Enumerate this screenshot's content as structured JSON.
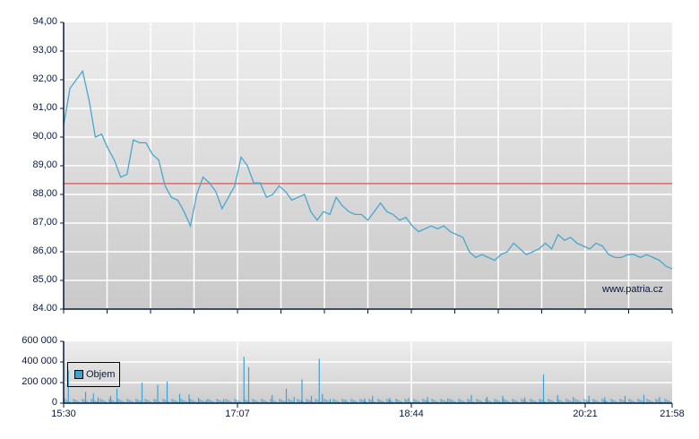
{
  "chart_data": [
    {
      "type": "line",
      "title": "",
      "xlabel": "",
      "ylabel": "",
      "ylim": [
        84.0,
        94.0
      ],
      "y_ticks": [
        "84.00",
        "85,00",
        "86,00",
        "87,00",
        "88,00",
        "89,00",
        "90,00",
        "91,00",
        "92,00",
        "93,00",
        "94,00"
      ],
      "x_ticks": [
        "15:30",
        "17:07",
        "18:44",
        "20:21",
        "21:58"
      ],
      "grid": true,
      "reference_line": {
        "value": 88.38,
        "color": "#d96a6a"
      },
      "watermark": "www.patria.cz",
      "series": [
        {
          "name": "Price",
          "color": "#4aa6cf",
          "x": [
            "15:30",
            "15:34",
            "15:38",
            "15:42",
            "15:46",
            "15:50",
            "15:54",
            "15:58",
            "16:02",
            "16:06",
            "16:10",
            "16:14",
            "16:18",
            "16:22",
            "16:26",
            "16:30",
            "16:34",
            "16:38",
            "16:42",
            "16:46",
            "16:50",
            "16:54",
            "16:58",
            "17:02",
            "17:07",
            "17:11",
            "17:15",
            "17:19",
            "17:23",
            "17:27",
            "17:31",
            "17:35",
            "17:39",
            "17:43",
            "17:47",
            "17:51",
            "17:55",
            "17:59",
            "18:03",
            "18:07",
            "18:11",
            "18:15",
            "18:19",
            "18:23",
            "18:27",
            "18:31",
            "18:35",
            "18:39",
            "18:44",
            "18:48",
            "18:52",
            "18:56",
            "19:00",
            "19:04",
            "19:08",
            "19:12",
            "19:16",
            "19:20",
            "19:24",
            "19:28",
            "19:32",
            "19:36",
            "19:40",
            "19:44",
            "19:48",
            "19:52",
            "19:56",
            "20:00",
            "20:04",
            "20:08",
            "20:12",
            "20:16",
            "20:21",
            "20:25",
            "20:29",
            "20:33",
            "20:37",
            "20:41",
            "20:45",
            "20:49",
            "20:53",
            "20:57",
            "21:01",
            "21:05",
            "21:09",
            "21:13",
            "21:17",
            "21:21",
            "21:25",
            "21:29",
            "21:33",
            "21:37",
            "21:41",
            "21:45",
            "21:49",
            "21:53",
            "21:58"
          ],
          "values": [
            90.4,
            91.7,
            92.0,
            92.3,
            91.3,
            90.0,
            90.1,
            89.6,
            89.2,
            88.6,
            88.7,
            89.9,
            89.8,
            89.8,
            89.4,
            89.2,
            88.3,
            87.9,
            87.8,
            87.4,
            86.9,
            88.0,
            88.6,
            88.4,
            88.1,
            87.5,
            87.9,
            88.3,
            89.3,
            89.0,
            88.4,
            88.4,
            87.9,
            88.0,
            88.3,
            88.1,
            87.8,
            87.9,
            88.0,
            87.4,
            87.1,
            87.4,
            87.3,
            87.9,
            87.6,
            87.4,
            87.3,
            87.3,
            87.1,
            87.4,
            87.7,
            87.4,
            87.3,
            87.1,
            87.2,
            86.9,
            86.7,
            86.8,
            86.9,
            86.8,
            86.9,
            86.7,
            86.6,
            86.5,
            86.0,
            85.8,
            85.9,
            85.8,
            85.7,
            85.9,
            86.0,
            86.3,
            86.1,
            85.9,
            86.0,
            86.1,
            86.3,
            86.1,
            86.6,
            86.4,
            86.5,
            86.3,
            86.2,
            86.1,
            86.3,
            86.2,
            85.9,
            85.8,
            85.8,
            85.9,
            85.9,
            85.8,
            85.9,
            85.8,
            85.7,
            85.5,
            85.4
          ]
        }
      ]
    },
    {
      "type": "bar",
      "title": "",
      "xlabel": "",
      "ylabel": "",
      "ylim": [
        0,
        600000
      ],
      "y_ticks": [
        "0",
        "200 000",
        "400 000",
        "600 000"
      ],
      "x_ticks": [
        "15:30",
        "17:07",
        "18:44",
        "20:21",
        "21:58"
      ],
      "grid": true,
      "legend": {
        "position": "upper-left",
        "entries": [
          "Objem"
        ]
      },
      "series": [
        {
          "name": "Objem",
          "color": "#3fa2d0",
          "x": [
            "15:33",
            "15:44",
            "15:49",
            "15:52",
            "16:00",
            "16:04",
            "16:20",
            "16:30",
            "16:36",
            "16:44",
            "16:50",
            "16:56",
            "17:01",
            "17:12",
            "17:25",
            "17:28",
            "17:43",
            "17:52",
            "17:57",
            "18:02",
            "18:08",
            "18:13",
            "18:15",
            "18:20",
            "18:30",
            "18:42",
            "18:47",
            "18:58",
            "19:02",
            "19:10",
            "19:22",
            "19:35",
            "19:50",
            "20:00",
            "20:10",
            "20:24",
            "20:36",
            "20:45",
            "20:55",
            "21:05",
            "21:15",
            "21:28",
            "21:40",
            "21:50"
          ],
          "values": [
            320000,
            110000,
            95000,
            55000,
            70000,
            140000,
            200000,
            180000,
            210000,
            90000,
            85000,
            50000,
            30000,
            40000,
            450000,
            350000,
            80000,
            140000,
            60000,
            230000,
            70000,
            430000,
            90000,
            40000,
            35000,
            45000,
            70000,
            50000,
            40000,
            50000,
            60000,
            45000,
            80000,
            60000,
            70000,
            55000,
            280000,
            80000,
            60000,
            70000,
            60000,
            70000,
            80000,
            60000
          ]
        }
      ]
    }
  ],
  "labels": {
    "price_y": [
      "94,00",
      "93,00",
      "92,00",
      "91,00",
      "90,00",
      "89,00",
      "88,00",
      "87,00",
      "86,00",
      "85,00",
      "84.00"
    ],
    "volume_y": [
      "600 000",
      "400 000",
      "200 000",
      "0"
    ],
    "x": [
      "15:30",
      "17:07",
      "18:44",
      "20:21",
      "21:58"
    ],
    "watermark": "www.patria.cz",
    "legend": "Objem"
  }
}
